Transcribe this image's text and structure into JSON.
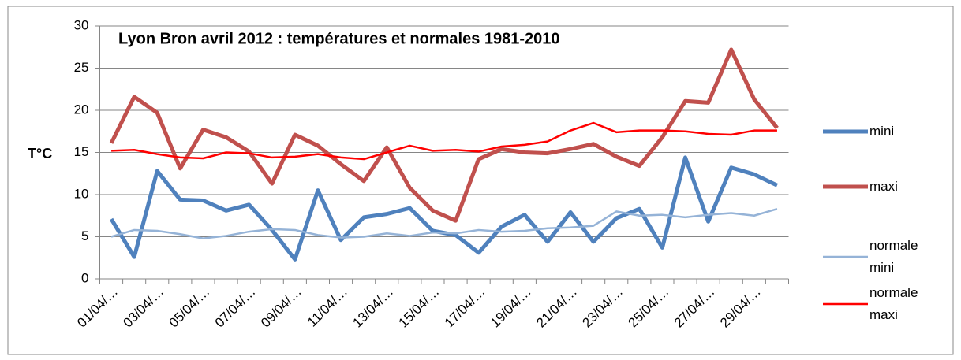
{
  "chart_data": {
    "type": "line",
    "title": "Lyon Bron avril 2012 : températures et normales 1981-2010",
    "y_label": "T°C",
    "categories": [
      "01/04/…",
      null,
      "03/04/…",
      null,
      "05/04/…",
      null,
      "07/04/…",
      null,
      "09/04/…",
      null,
      "11/04/…",
      null,
      "13/04/…",
      null,
      "15/04/…",
      null,
      "17/04/…",
      null,
      "19/04/…",
      null,
      "21/04/…",
      null,
      "23/04/…",
      null,
      "25/04/…",
      null,
      "27/04/…",
      null,
      "29/04/…",
      null
    ],
    "series": [
      {
        "name": "mini",
        "color": "#4f81bd",
        "width": 5,
        "values": [
          7.1,
          2.6,
          12.8,
          9.4,
          9.3,
          8.1,
          8.8,
          5.8,
          2.3,
          10.5,
          4.6,
          7.3,
          7.7,
          8.4,
          5.7,
          5.2,
          3.1,
          6.2,
          7.6,
          4.4,
          7.9,
          4.4,
          7.2,
          8.3,
          3.7,
          14.4,
          6.8,
          13.2,
          12.4,
          11.1
        ]
      },
      {
        "name": "maxi",
        "color": "#c0504d",
        "width": 5,
        "values": [
          16.1,
          21.6,
          19.7,
          13.1,
          17.7,
          16.8,
          15.1,
          11.3,
          17.1,
          15.8,
          13.6,
          11.6,
          15.6,
          10.8,
          8.1,
          6.9,
          14.2,
          15.4,
          15.0,
          14.9,
          15.4,
          16.0,
          14.5,
          13.4,
          16.8,
          21.1,
          20.9,
          27.2,
          21.3,
          17.9
        ]
      },
      {
        "name": "normale mini",
        "color": "#95b3d7",
        "width": 2.5,
        "values": [
          5.0,
          5.8,
          5.7,
          5.3,
          4.8,
          5.1,
          5.6,
          5.9,
          5.8,
          5.2,
          4.9,
          5.0,
          5.4,
          5.1,
          5.5,
          5.4,
          5.8,
          5.6,
          5.7,
          6.0,
          6.1,
          6.3,
          8.0,
          7.5,
          7.6,
          7.3,
          7.6,
          7.8,
          7.5,
          8.3
        ]
      },
      {
        "name": "normale maxi",
        "color": "#ff0000",
        "width": 2.5,
        "values": [
          15.2,
          15.3,
          14.8,
          14.4,
          14.3,
          15.0,
          14.9,
          14.4,
          14.5,
          14.8,
          14.4,
          14.2,
          15.0,
          15.8,
          15.2,
          15.3,
          15.1,
          15.7,
          15.9,
          16.3,
          17.6,
          18.5,
          17.4,
          17.6,
          17.6,
          17.5,
          17.2,
          17.1,
          17.6,
          17.6
        ]
      }
    ],
    "ylim": [
      0,
      30
    ],
    "yticks": [
      0,
      5,
      10,
      15,
      20,
      25,
      30
    ],
    "grid": true,
    "legend": "right"
  }
}
